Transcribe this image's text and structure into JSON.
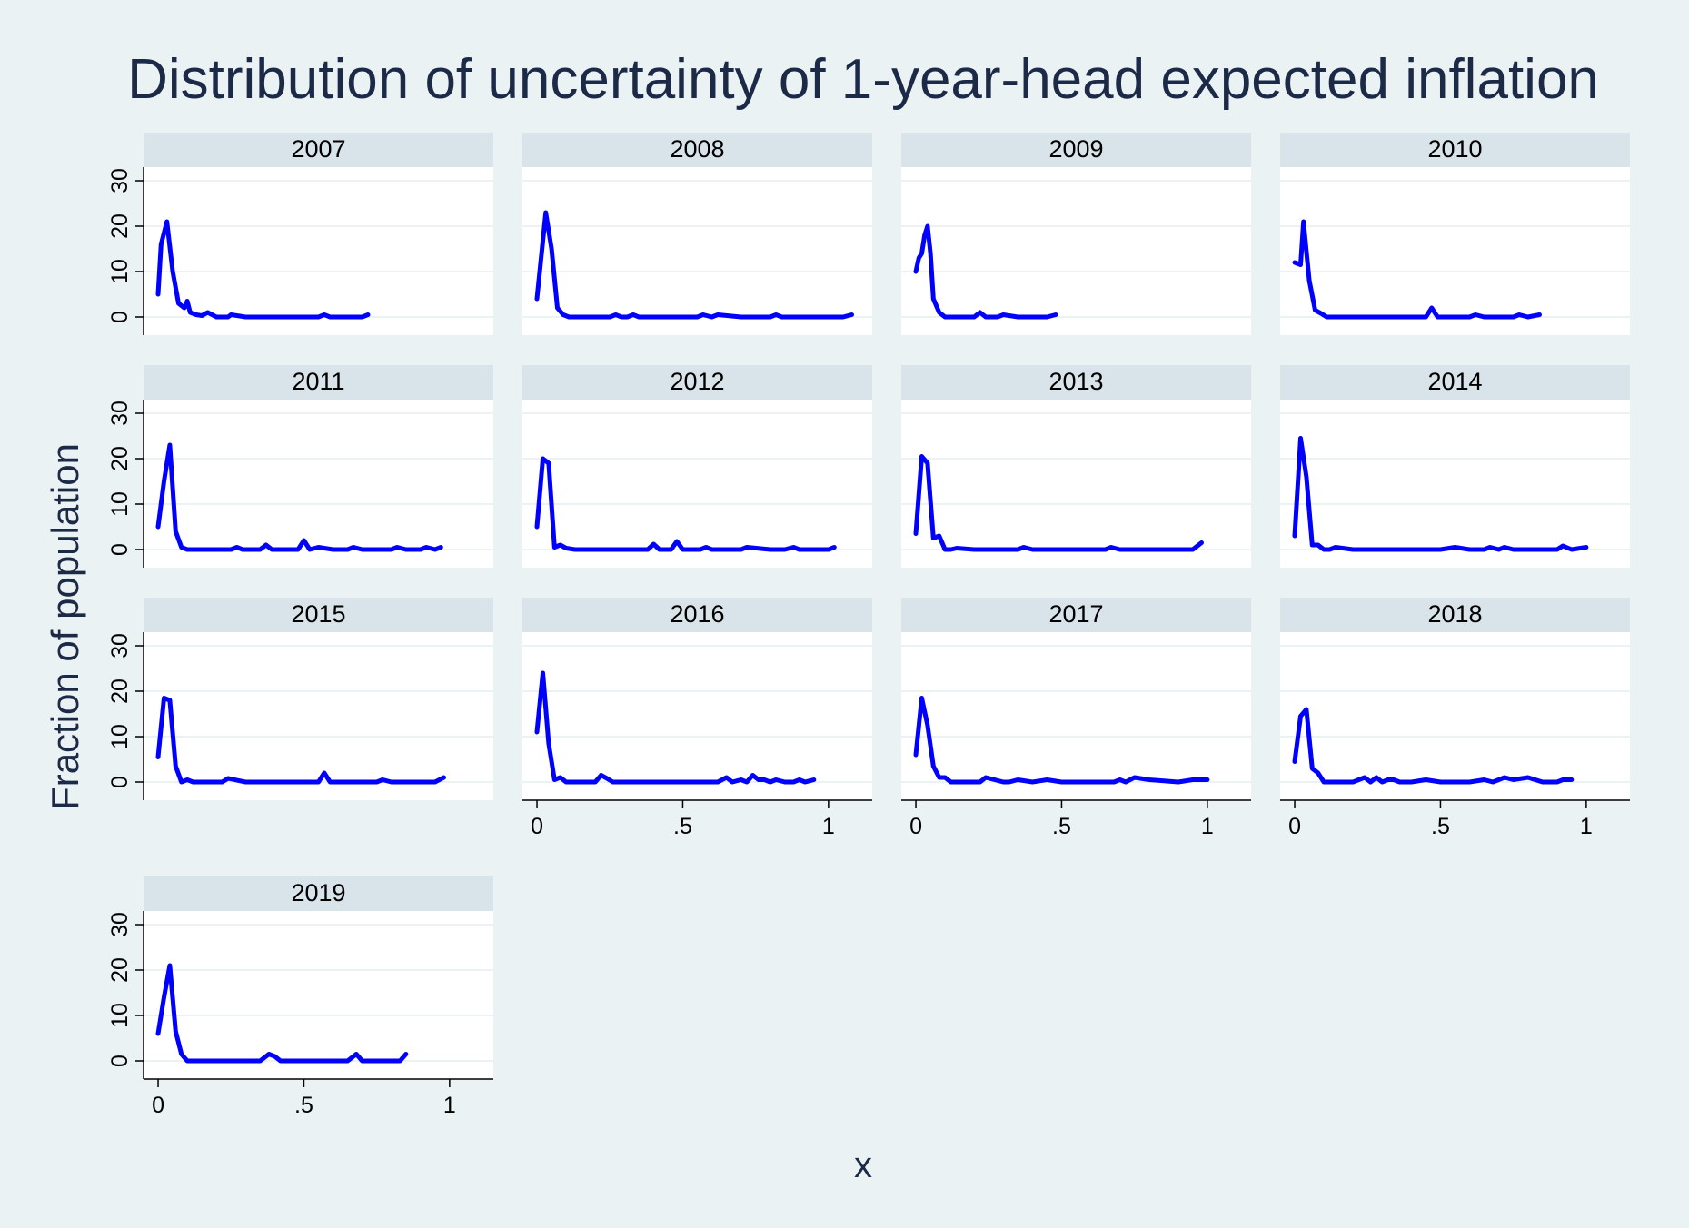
{
  "chart_data": {
    "type": "line",
    "title": "Distribution of uncertainty of 1-year-head expected inflation",
    "xlabel": "x",
    "ylabel": "Fraction of population",
    "xlim": [
      -0.05,
      1.15
    ],
    "ylim": [
      -4,
      33
    ],
    "x_ticks": [
      0,
      0.5,
      1
    ],
    "x_tick_labels": [
      "0",
      ".5",
      "1"
    ],
    "y_ticks": [
      0,
      10,
      20,
      30
    ],
    "y_tick_labels": [
      "0",
      "10",
      "20",
      "30"
    ],
    "grid": true,
    "line_color": "#0000ff",
    "panel_background": "#ffffff",
    "strip_color": "#d8e4ea",
    "background_color": "#eaf2f3",
    "panels": [
      {
        "label": "2007",
        "x": [
          0.0,
          0.01,
          0.03,
          0.05,
          0.07,
          0.09,
          0.1,
          0.11,
          0.13,
          0.15,
          0.17,
          0.2,
          0.22,
          0.24,
          0.25,
          0.3,
          0.4,
          0.5,
          0.55,
          0.57,
          0.59,
          0.65,
          0.7,
          0.72
        ],
        "y": [
          5,
          16,
          21,
          10,
          3,
          2,
          3.5,
          1,
          0.5,
          0.3,
          1,
          0,
          0,
          0,
          0.5,
          0,
          0,
          0,
          0,
          0.5,
          0,
          0,
          0,
          0.5
        ]
      },
      {
        "label": "2008",
        "x": [
          0.0,
          0.03,
          0.05,
          0.07,
          0.09,
          0.11,
          0.15,
          0.2,
          0.25,
          0.27,
          0.29,
          0.31,
          0.33,
          0.35,
          0.4,
          0.5,
          0.55,
          0.57,
          0.6,
          0.62,
          0.7,
          0.8,
          0.82,
          0.84,
          0.9,
          1.0,
          1.05,
          1.08
        ],
        "y": [
          4,
          23,
          15,
          2,
          0.5,
          0,
          0,
          0,
          0,
          0.5,
          0,
          0,
          0.5,
          0,
          0,
          0,
          0,
          0.5,
          0,
          0.5,
          0,
          0,
          0.5,
          0,
          0,
          0,
          0,
          0.5
        ]
      },
      {
        "label": "2009",
        "x": [
          0.0,
          0.01,
          0.02,
          0.03,
          0.04,
          0.05,
          0.06,
          0.08,
          0.1,
          0.15,
          0.2,
          0.22,
          0.24,
          0.28,
          0.3,
          0.35,
          0.4,
          0.45,
          0.48
        ],
        "y": [
          10,
          13,
          14,
          18,
          20,
          14,
          4,
          1,
          0,
          0,
          0,
          1,
          0,
          0,
          0.5,
          0,
          0,
          0,
          0.5
        ]
      },
      {
        "label": "2010",
        "x": [
          0.0,
          0.02,
          0.03,
          0.05,
          0.07,
          0.09,
          0.11,
          0.15,
          0.2,
          0.3,
          0.4,
          0.45,
          0.47,
          0.49,
          0.55,
          0.6,
          0.62,
          0.65,
          0.7,
          0.75,
          0.77,
          0.8,
          0.84
        ],
        "y": [
          12,
          11.5,
          21,
          8,
          1.5,
          0.8,
          0,
          0,
          0,
          0,
          0,
          0,
          2,
          0,
          0,
          0,
          0.5,
          0,
          0,
          0,
          0.5,
          0,
          0.5
        ]
      },
      {
        "label": "2011",
        "x": [
          0.0,
          0.02,
          0.04,
          0.06,
          0.08,
          0.1,
          0.15,
          0.25,
          0.27,
          0.29,
          0.35,
          0.37,
          0.39,
          0.45,
          0.48,
          0.5,
          0.52,
          0.55,
          0.6,
          0.65,
          0.67,
          0.7,
          0.75,
          0.8,
          0.82,
          0.85,
          0.9,
          0.92,
          0.95,
          0.97
        ],
        "y": [
          5,
          15,
          23,
          4,
          0.5,
          0,
          0,
          0,
          0.5,
          0,
          0,
          1,
          0,
          0,
          0,
          2,
          0,
          0.5,
          0,
          0,
          0.5,
          0,
          0,
          0,
          0.5,
          0,
          0,
          0.5,
          0,
          0.5
        ]
      },
      {
        "label": "2012",
        "x": [
          0.0,
          0.02,
          0.04,
          0.06,
          0.08,
          0.1,
          0.13,
          0.2,
          0.3,
          0.38,
          0.4,
          0.42,
          0.46,
          0.48,
          0.5,
          0.56,
          0.58,
          0.6,
          0.7,
          0.72,
          0.8,
          0.85,
          0.88,
          0.9,
          0.95,
          1.0,
          1.02
        ],
        "y": [
          5,
          20,
          19,
          0.5,
          1,
          0.3,
          0,
          0,
          0,
          0,
          1.2,
          0,
          0,
          1.8,
          0,
          0,
          0.5,
          0,
          0,
          0.5,
          0,
          0,
          0.5,
          0,
          0,
          0,
          0.5
        ]
      },
      {
        "label": "2013",
        "x": [
          0.0,
          0.02,
          0.04,
          0.06,
          0.08,
          0.1,
          0.12,
          0.14,
          0.2,
          0.3,
          0.35,
          0.37,
          0.4,
          0.5,
          0.6,
          0.65,
          0.67,
          0.7,
          0.8,
          0.9,
          0.95,
          0.98
        ],
        "y": [
          3.5,
          20.5,
          19,
          2.5,
          3,
          0,
          0,
          0.3,
          0,
          0,
          0,
          0.5,
          0,
          0,
          0,
          0,
          0.5,
          0,
          0,
          0,
          0,
          1.5
        ]
      },
      {
        "label": "2014",
        "x": [
          0.0,
          0.02,
          0.04,
          0.06,
          0.08,
          0.1,
          0.12,
          0.14,
          0.2,
          0.3,
          0.4,
          0.45,
          0.5,
          0.55,
          0.6,
          0.65,
          0.67,
          0.7,
          0.72,
          0.75,
          0.8,
          0.85,
          0.9,
          0.92,
          0.95,
          1.0
        ],
        "y": [
          3,
          24.5,
          16,
          1,
          1,
          0,
          0,
          0.5,
          0,
          0,
          0,
          0,
          0,
          0.5,
          0,
          0,
          0.5,
          0,
          0.5,
          0,
          0,
          0,
          0,
          0.8,
          0,
          0.5
        ]
      },
      {
        "label": "2015",
        "x": [
          0.0,
          0.02,
          0.04,
          0.06,
          0.08,
          0.1,
          0.12,
          0.2,
          0.22,
          0.24,
          0.3,
          0.4,
          0.5,
          0.55,
          0.57,
          0.59,
          0.7,
          0.75,
          0.77,
          0.8,
          0.9,
          0.95,
          0.98
        ],
        "y": [
          5.5,
          18.5,
          18,
          3.5,
          0,
          0.5,
          0,
          0,
          0,
          0.8,
          0,
          0,
          0,
          0,
          2,
          0,
          0,
          0,
          0.5,
          0,
          0,
          0,
          1
        ]
      },
      {
        "label": "2016",
        "x": [
          0.0,
          0.02,
          0.04,
          0.06,
          0.08,
          0.1,
          0.12,
          0.2,
          0.22,
          0.24,
          0.26,
          0.3,
          0.4,
          0.5,
          0.6,
          0.62,
          0.65,
          0.67,
          0.7,
          0.72,
          0.74,
          0.76,
          0.78,
          0.8,
          0.82,
          0.85,
          0.88,
          0.9,
          0.92,
          0.95
        ],
        "y": [
          11,
          24,
          8.5,
          0.5,
          1,
          0,
          0,
          0,
          1.5,
          0.8,
          0,
          0,
          0,
          0,
          0,
          0,
          1,
          0,
          0.5,
          0,
          1.5,
          0.5,
          0.5,
          0,
          0.5,
          0,
          0,
          0.5,
          0,
          0.5
        ]
      },
      {
        "label": "2017",
        "x": [
          0.0,
          0.02,
          0.04,
          0.06,
          0.08,
          0.1,
          0.12,
          0.2,
          0.22,
          0.24,
          0.3,
          0.32,
          0.35,
          0.4,
          0.45,
          0.5,
          0.6,
          0.65,
          0.68,
          0.7,
          0.72,
          0.75,
          0.8,
          0.9,
          0.95,
          1.0
        ],
        "y": [
          6,
          18.5,
          12.5,
          3.5,
          1,
          1,
          0,
          0,
          0,
          1,
          0,
          0,
          0.5,
          0,
          0.5,
          0,
          0,
          0,
          0,
          0.5,
          0,
          1,
          0.5,
          0,
          0.5,
          0.5
        ]
      },
      {
        "label": "2018",
        "x": [
          0.0,
          0.02,
          0.04,
          0.06,
          0.08,
          0.1,
          0.15,
          0.2,
          0.24,
          0.26,
          0.28,
          0.3,
          0.32,
          0.34,
          0.36,
          0.4,
          0.45,
          0.5,
          0.6,
          0.65,
          0.68,
          0.7,
          0.72,
          0.75,
          0.8,
          0.85,
          0.9,
          0.92,
          0.95
        ],
        "y": [
          4.5,
          14.5,
          16,
          3,
          2,
          0,
          0,
          0,
          1,
          0,
          1,
          0,
          0.5,
          0.5,
          0,
          0,
          0.5,
          0,
          0,
          0.5,
          0,
          0.5,
          1,
          0.5,
          1,
          0,
          0,
          0.5,
          0.5
        ]
      },
      {
        "label": "2019",
        "x": [
          0.0,
          0.02,
          0.04,
          0.06,
          0.08,
          0.1,
          0.15,
          0.2,
          0.3,
          0.35,
          0.38,
          0.4,
          0.42,
          0.5,
          0.6,
          0.65,
          0.68,
          0.7,
          0.75,
          0.8,
          0.83,
          0.85
        ],
        "y": [
          6,
          14,
          21,
          6.5,
          1.5,
          0,
          0,
          0,
          0,
          0,
          1.5,
          1,
          0,
          0,
          0,
          0,
          1.5,
          0,
          0,
          0,
          0,
          1.5
        ]
      }
    ]
  }
}
